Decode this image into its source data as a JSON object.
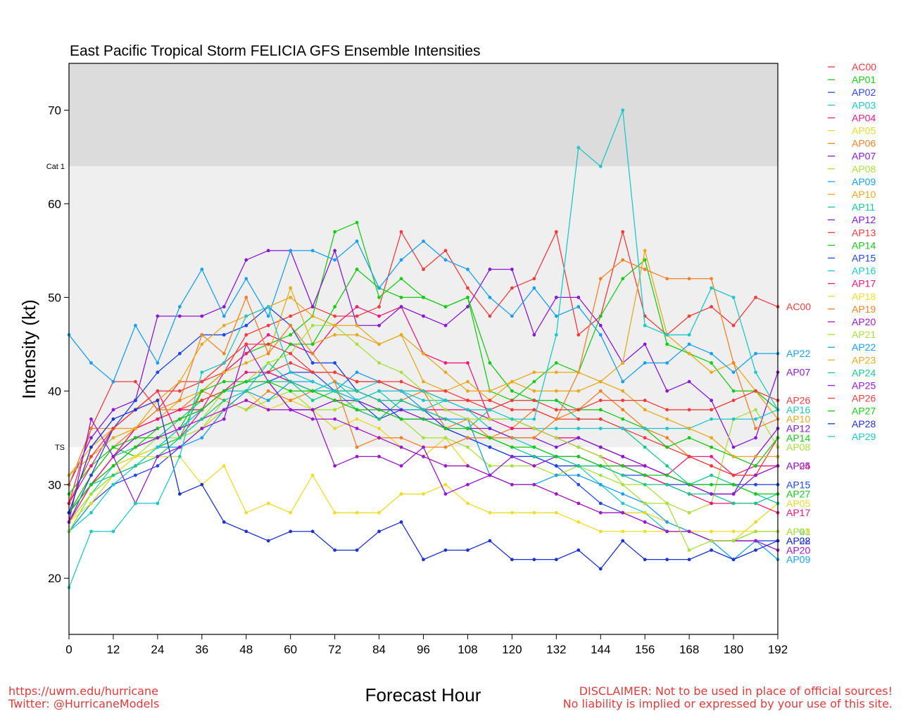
{
  "footer": {
    "url": "https://uwm.edu/hurricane",
    "twitter": "Twitter: @HurricaneModels",
    "disclaimer1": "DISCLAIMER: Not to be used in place of official sources!",
    "disclaimer2": "No liability is implied or expressed by your use of this site."
  },
  "chart_data": {
    "type": "line",
    "title": "East Pacific Tropical Storm FELICIA GFS Ensemble Intensities",
    "xlabel": "Forecast Hour",
    "ylabel": "Intensity (kt)",
    "xlim": [
      0,
      192
    ],
    "ylim": [
      14,
      75
    ],
    "xticks": [
      0,
      12,
      24,
      36,
      48,
      60,
      72,
      84,
      96,
      108,
      120,
      132,
      144,
      156,
      168,
      180,
      192
    ],
    "yticks": [
      20,
      30,
      40,
      50,
      60,
      70
    ],
    "bands": [
      {
        "from": 64,
        "to": 75,
        "color": "#dcdcdc",
        "label": "Cat 1"
      },
      {
        "from": 34,
        "to": 64,
        "color": "#efefef",
        "label": "TS"
      }
    ],
    "legend_position": "right",
    "x": [
      0,
      6,
      12,
      18,
      24,
      30,
      36,
      42,
      48,
      54,
      60,
      66,
      72,
      78,
      84,
      90,
      96,
      102,
      108,
      114,
      120,
      126,
      132,
      138,
      144,
      150,
      156,
      162,
      168,
      174,
      180,
      186,
      192
    ],
    "series": [
      {
        "name": "AC00",
        "color": "#f03c3c",
        "end_label": "AC00",
        "values": [
          28,
          36,
          41,
          41,
          38,
          41,
          41,
          42,
          46,
          47,
          48,
          49,
          48,
          48,
          49,
          57,
          53,
          55,
          51,
          48,
          51,
          52,
          57,
          46,
          48,
          57,
          48,
          46,
          48,
          49,
          47,
          50,
          49
        ]
      },
      {
        "name": "AP01",
        "color": "#19cd19",
        "end_label": "",
        "values": [
          29,
          32,
          34,
          33,
          34,
          35,
          40,
          42,
          44,
          45,
          46,
          48,
          57,
          58,
          50,
          52,
          50,
          49,
          50,
          40,
          39,
          41,
          43,
          42,
          48,
          52,
          54,
          45,
          44,
          43,
          40,
          40,
          38
        ]
      },
      {
        "name": "AP02",
        "color": "#2a48e8",
        "end_label": "AP02",
        "values": [
          25,
          28,
          30,
          31,
          32,
          34,
          36,
          38,
          40,
          41,
          42,
          42,
          40,
          39,
          37,
          38,
          38,
          36,
          35,
          34,
          33,
          33,
          32,
          30,
          28,
          27,
          26,
          25,
          25,
          24,
          24,
          24,
          24
        ]
      },
      {
        "name": "AP03",
        "color": "#1ec8c8",
        "end_label": "AP03",
        "values": [
          25,
          29,
          32,
          33,
          34,
          36,
          38,
          40,
          40,
          43,
          41,
          40,
          41,
          39,
          40,
          38,
          38,
          39,
          38,
          36,
          35,
          34,
          33,
          32,
          30,
          28,
          27,
          25,
          25,
          24,
          24,
          25,
          25
        ]
      },
      {
        "name": "AP04",
        "color": "#f0197d",
        "end_label": "AP04",
        "values": [
          28,
          32,
          36,
          38,
          40,
          35,
          38,
          42,
          44,
          46,
          45,
          44,
          47,
          49,
          48,
          49,
          44,
          43,
          43,
          37,
          37,
          36,
          35,
          35,
          34,
          33,
          32,
          31,
          33,
          33,
          31,
          32,
          32
        ]
      },
      {
        "name": "AP05",
        "color": "#e8d82a",
        "end_label": "AP05",
        "values": [
          27,
          30,
          32,
          33,
          34,
          34,
          36,
          38,
          40,
          38,
          39,
          38,
          36,
          37,
          36,
          34,
          33,
          35,
          32,
          31,
          30,
          30,
          29,
          28,
          27,
          27,
          27,
          26,
          25,
          24,
          24,
          26,
          28
        ]
      },
      {
        "name": "AP06",
        "color": "#f08228",
        "end_label": "",
        "values": [
          27,
          31,
          34,
          36,
          38,
          38,
          40,
          39,
          38,
          40,
          39,
          40,
          39,
          38,
          37,
          39,
          40,
          36,
          37,
          35,
          36,
          38,
          37,
          38,
          40,
          38,
          36,
          35,
          33,
          32,
          31,
          31,
          32
        ]
      },
      {
        "name": "AP07",
        "color": "#8a19d4",
        "end_label": "AP07",
        "values": [
          30,
          35,
          38,
          39,
          48,
          48,
          48,
          49,
          54,
          55,
          55,
          49,
          55,
          47,
          47,
          49,
          48,
          47,
          49,
          53,
          53,
          46,
          50,
          50,
          47,
          43,
          45,
          40,
          41,
          39,
          34,
          35,
          42
        ]
      },
      {
        "name": "AP08",
        "color": "#a8e03c",
        "end_label": "AP08",
        "values": [
          26,
          29,
          31,
          33,
          35,
          35,
          36,
          39,
          38,
          39,
          40,
          38,
          38,
          39,
          38,
          37,
          35,
          35,
          34,
          32,
          32,
          32,
          31,
          32,
          31,
          30,
          30,
          28,
          27,
          28,
          37,
          38,
          34
        ]
      },
      {
        "name": "AP09",
        "color": "#19a0f0",
        "end_label": "AP09",
        "values": [
          25,
          28,
          31,
          32,
          34,
          34,
          35,
          38,
          40,
          39,
          41,
          41,
          40,
          42,
          41,
          40,
          38,
          37,
          37,
          31,
          30,
          30,
          31,
          31,
          30,
          29,
          28,
          26,
          25,
          24,
          22,
          24,
          22
        ]
      },
      {
        "name": "AP10",
        "color": "#e6aa1e",
        "end_label": "AP10",
        "values": [
          31,
          33,
          35,
          36,
          37,
          39,
          40,
          42,
          43,
          44,
          51,
          45,
          46,
          46,
          45,
          46,
          41,
          40,
          41,
          39,
          41,
          40,
          40,
          40,
          41,
          43,
          55,
          46,
          44,
          42,
          43,
          40,
          37
        ]
      },
      {
        "name": "AP11",
        "color": "#19c88c",
        "end_label": "",
        "values": [
          27,
          30,
          33,
          34,
          35,
          37,
          39,
          40,
          41,
          42,
          41,
          39,
          40,
          38,
          37,
          39,
          38,
          37,
          36,
          38,
          39,
          39,
          39,
          37,
          37,
          36,
          34,
          32,
          30,
          31,
          30,
          29,
          28
        ]
      },
      {
        "name": "AP12",
        "color": "#8219d2",
        "end_label": "AP12",
        "values": [
          27,
          30,
          33,
          35,
          36,
          37,
          38,
          40,
          41,
          41,
          38,
          38,
          39,
          39,
          38,
          38,
          37,
          37,
          36,
          36,
          35,
          35,
          34,
          35,
          34,
          33,
          32,
          31,
          30,
          29,
          29,
          33,
          36
        ]
      },
      {
        "name": "AP13",
        "color": "#f03c3c",
        "end_label": "",
        "values": [
          26,
          30,
          33,
          36,
          37,
          38,
          39,
          40,
          41,
          42,
          43,
          42,
          42,
          41,
          41,
          41,
          40,
          40,
          39,
          39,
          38,
          38,
          37,
          37,
          37,
          36,
          35,
          34,
          33,
          32,
          31,
          31,
          35
        ]
      },
      {
        "name": "AP14",
        "color": "#19c819",
        "end_label": "AP14",
        "values": [
          27,
          31,
          34,
          35,
          35,
          36,
          40,
          41,
          41,
          42,
          45,
          45,
          49,
          53,
          51,
          50,
          50,
          49,
          50,
          43,
          40,
          39,
          39,
          38,
          38,
          37,
          36,
          34,
          35,
          34,
          33,
          32,
          35
        ]
      },
      {
        "name": "AP15",
        "color": "#1e46e6",
        "end_label": "AP15",
        "values": [
          26,
          31,
          36,
          39,
          42,
          44,
          46,
          46,
          47,
          49,
          47,
          43,
          43,
          40,
          39,
          37,
          37,
          36,
          35,
          34,
          33,
          33,
          32,
          32,
          32,
          31,
          31,
          30,
          30,
          30,
          30,
          30,
          30
        ]
      },
      {
        "name": "AP16",
        "color": "#1ec8c8",
        "end_label": "AP16",
        "values": [
          25,
          27,
          30,
          32,
          34,
          36,
          38,
          40,
          41,
          42,
          41,
          40,
          41,
          40,
          41,
          40,
          39,
          39,
          38,
          37,
          37,
          36,
          36,
          36,
          36,
          36,
          36,
          36,
          36,
          37,
          37,
          37,
          38
        ]
      },
      {
        "name": "AP17",
        "color": "#f01478",
        "end_label": "AP17",
        "values": [
          26,
          30,
          33,
          36,
          37,
          38,
          38,
          40,
          42,
          42,
          41,
          40,
          40,
          40,
          39,
          39,
          38,
          38,
          38,
          37,
          36,
          36,
          35,
          34,
          33,
          32,
          31,
          30,
          29,
          28,
          28,
          28,
          27
        ]
      },
      {
        "name": "AP18",
        "color": "#f0dc2a",
        "end_label": "AP18",
        "values": [
          26,
          28,
          31,
          33,
          33,
          33,
          30,
          32,
          27,
          28,
          27,
          31,
          27,
          27,
          27,
          29,
          29,
          30,
          28,
          27,
          27,
          27,
          27,
          26,
          25,
          25,
          25,
          25,
          25,
          25,
          25,
          25,
          25
        ]
      },
      {
        "name": "AP19",
        "color": "#f08228",
        "end_label": "",
        "values": [
          30,
          36,
          36,
          36,
          38,
          39,
          46,
          44,
          50,
          44,
          47,
          44,
          41,
          34,
          35,
          35,
          34,
          34,
          35,
          35,
          35,
          35,
          37,
          42,
          52,
          54,
          53,
          52,
          52,
          52,
          43,
          36,
          37
        ]
      },
      {
        "name": "AP20",
        "color": "#a019c8",
        "end_label": "AP20",
        "values": [
          27,
          30,
          32,
          34,
          35,
          36,
          37,
          38,
          39,
          38,
          38,
          37,
          37,
          36,
          35,
          34,
          33,
          32,
          32,
          31,
          30,
          30,
          29,
          28,
          27,
          27,
          26,
          25,
          25,
          24,
          24,
          24,
          23
        ]
      },
      {
        "name": "AP21",
        "color": "#a8e03c",
        "end_label": "AP21",
        "values": [
          25,
          29,
          31,
          32,
          33,
          35,
          37,
          40,
          41,
          43,
          44,
          47,
          47,
          45,
          43,
          42,
          40,
          38,
          37,
          37,
          37,
          36,
          35,
          34,
          33,
          30,
          28,
          28,
          23,
          24,
          24,
          25,
          25
        ]
      },
      {
        "name": "AP22",
        "color": "#19a0f0",
        "end_label": "AP22",
        "values": [
          46,
          43,
          41,
          47,
          43,
          49,
          53,
          48,
          52,
          48,
          55,
          55,
          54,
          56,
          51,
          54,
          56,
          54,
          53,
          50,
          48,
          51,
          48,
          49,
          46,
          41,
          43,
          43,
          45,
          44,
          42,
          44,
          44
        ]
      },
      {
        "name": "AP23",
        "color": "#e6aa1e",
        "end_label": "",
        "values": [
          31,
          34,
          36,
          36,
          39,
          41,
          45,
          47,
          48,
          49,
          50,
          48,
          47,
          47,
          45,
          46,
          44,
          42,
          40,
          40,
          41,
          42,
          42,
          42,
          41,
          40,
          38,
          37,
          36,
          35,
          33,
          33,
          33
        ]
      },
      {
        "name": "AP24",
        "color": "#19c88c",
        "end_label": "",
        "values": [
          27,
          30,
          31,
          32,
          33,
          35,
          37,
          39,
          40,
          41,
          41,
          40,
          40,
          40,
          39,
          39,
          38,
          37,
          36,
          35,
          34,
          33,
          33,
          32,
          32,
          31,
          30,
          30,
          29,
          29,
          28,
          28,
          29
        ]
      },
      {
        "name": "AP25",
        "color": "#9619d2",
        "end_label": "AP25",
        "values": [
          26,
          37,
          33,
          28,
          33,
          34,
          36,
          37,
          45,
          41,
          38,
          38,
          32,
          33,
          33,
          32,
          34,
          29,
          30,
          31,
          33,
          32,
          33,
          33,
          32,
          32,
          32,
          31,
          30,
          29,
          29,
          31,
          32
        ]
      },
      {
        "name": "AP26",
        "color": "#f03c3c",
        "end_label": "AP26",
        "values": [
          28,
          33,
          36,
          38,
          40,
          40,
          41,
          43,
          45,
          45,
          44,
          42,
          42,
          41,
          41,
          40,
          40,
          39,
          39,
          38,
          39,
          39,
          38,
          38,
          39,
          39,
          39,
          38,
          38,
          38,
          39,
          40,
          39
        ]
      },
      {
        "name": "AP27",
        "color": "#19c819",
        "end_label": "AP27",
        "values": [
          27,
          30,
          32,
          34,
          36,
          37,
          38,
          40,
          41,
          41,
          40,
          40,
          39,
          38,
          38,
          37,
          37,
          36,
          36,
          35,
          34,
          34,
          33,
          33,
          32,
          32,
          31,
          31,
          30,
          30,
          30,
          29,
          29
        ]
      },
      {
        "name": "AP28",
        "color": "#1e32d2",
        "end_label": "AP28",
        "values": [
          27,
          34,
          37,
          38,
          39,
          29,
          30,
          26,
          25,
          24,
          25,
          25,
          23,
          23,
          25,
          26,
          22,
          23,
          23,
          24,
          22,
          22,
          22,
          23,
          21,
          24,
          22,
          22,
          22,
          23,
          22,
          23,
          24
        ]
      },
      {
        "name": "AP29",
        "color": "#1ec8c8",
        "end_label": "",
        "values": [
          19,
          25,
          25,
          28,
          28,
          33,
          42,
          43,
          48,
          49,
          42,
          41,
          40,
          39,
          40,
          40,
          40,
          39,
          38,
          38,
          37,
          37,
          46,
          66,
          64,
          70,
          47,
          46,
          46,
          51,
          50,
          42,
          38
        ]
      }
    ]
  }
}
